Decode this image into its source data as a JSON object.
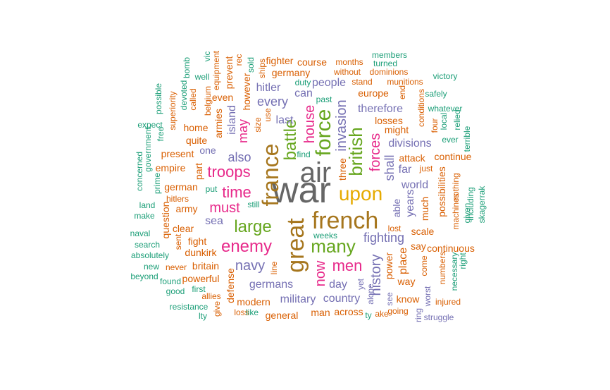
{
  "palette": {
    "gray": "#666666",
    "brown": "#A6761D",
    "green": "#66A61E",
    "gold": "#E6AB02",
    "pink": "#E7298A",
    "purple": "#7570B3",
    "orange": "#D95F02",
    "teal": "#1B9E77"
  },
  "words": [
    "war",
    "air",
    "french",
    "great",
    "france",
    "force",
    "upon",
    "british",
    "many",
    "battle",
    "enemy",
    "large",
    "men",
    "troops",
    "time",
    "must",
    "house",
    "invasion",
    "forces",
    "navy",
    "history",
    "now",
    "fighting",
    "shall",
    "divisions",
    "germans",
    "therefore",
    "last",
    "every",
    "also",
    "military",
    "country",
    "day",
    "sea",
    "years",
    "world",
    "place",
    "people",
    "hitler",
    "island",
    "may",
    "can",
    "power",
    "might",
    "three",
    "able",
    "far",
    "one",
    "losses",
    "europe",
    "attack",
    "fighter",
    "germany",
    "course",
    "months",
    "without",
    "dominions",
    "munitions",
    "stand",
    "german",
    "army",
    "empire",
    "present",
    "fight",
    "clear",
    "dunkirk",
    "britain",
    "powerful",
    "allies",
    "defense",
    "modern",
    "loss",
    "general",
    "man",
    "across",
    "going",
    "know",
    "way",
    "scale",
    "much",
    "say",
    "continuous",
    "possibilities",
    "nothing",
    "machines",
    "numbers",
    "necessary",
    "continue",
    "conditions",
    "four",
    "just",
    "lost",
    "come",
    "quite",
    "home",
    "armies",
    "even",
    "however",
    "prevent",
    "hitlers",
    "question",
    "never",
    "part",
    "members",
    "turned",
    "victory",
    "safely",
    "whatever",
    "local",
    "ever",
    "relied",
    "terrible",
    "given",
    "including",
    "skagerrak",
    "right",
    "injured",
    "struggle",
    "worst",
    "ring",
    "see",
    "yet",
    "alone",
    "weeks",
    "past",
    "duty",
    "find",
    "put",
    "still",
    "size",
    "use",
    "sold",
    "ships",
    "bomb",
    "devoted",
    "called",
    "belgium",
    "superiority",
    "possible",
    "expect",
    "free",
    "government",
    "concerned",
    "prime",
    "land",
    "make",
    "naval",
    "search",
    "absolutely",
    "new",
    "beyond",
    "found",
    "good",
    "first",
    "resistance",
    "give",
    "like",
    "sent",
    "line",
    "well",
    "equipment",
    "end",
    "vic",
    "rec",
    "lty",
    "ake",
    "ty"
  ]
}
